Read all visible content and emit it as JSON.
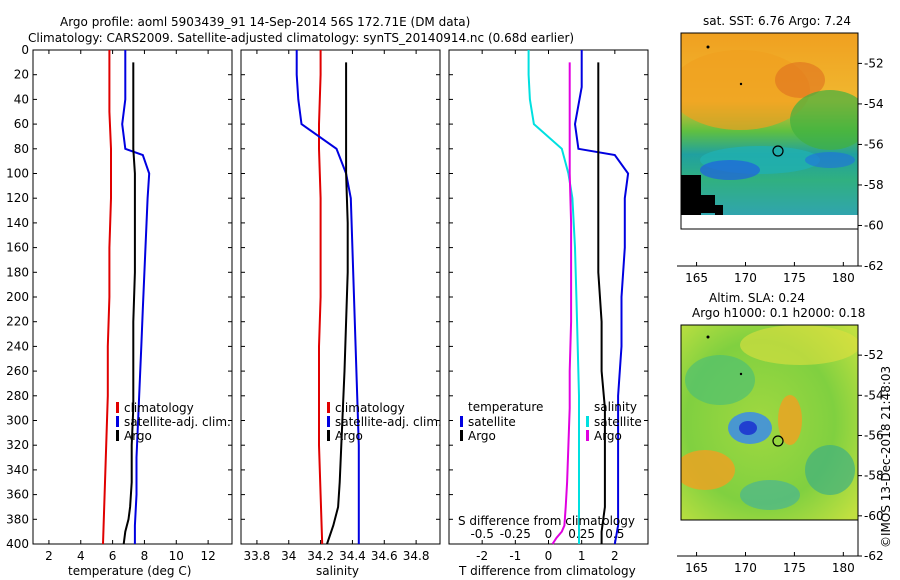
{
  "header": {
    "title_line1": "Argo profile: aoml 5903439_91 14-Sep-2014 56S 172.71E (DM data)",
    "title_line2": "Climatology: CARS2009. Satellite-adjusted climatology: synTS_20140914.nc (0.68d earlier)"
  },
  "colors": {
    "climatology": "#e00000",
    "satellite": "#0000e0",
    "argo": "#000000",
    "cyan": "#00e0e0",
    "magenta": "#e000e0"
  },
  "chart_data": [
    {
      "type": "line",
      "title": "",
      "xlabel": "temperature (deg C)",
      "ylabel": "",
      "xlim": [
        1,
        13.5
      ],
      "ylim": [
        400,
        0
      ],
      "xticks": [
        "2",
        "4",
        "6",
        "8",
        "10",
        "12"
      ],
      "yticks": [
        "0",
        "20",
        "40",
        "60",
        "80",
        "100",
        "120",
        "140",
        "160",
        "180",
        "200",
        "220",
        "240",
        "260",
        "280",
        "300",
        "320",
        "340",
        "360",
        "380",
        "400"
      ],
      "legend": [
        "climatology",
        "satellite-adj. clim.",
        "Argo"
      ],
      "legend_position": "lower-right",
      "series": [
        {
          "name": "climatology",
          "color": "#e00000",
          "x": [
            5.8,
            5.8,
            5.8,
            5.9,
            5.9,
            5.8,
            5.8,
            5.7,
            5.7,
            5.6,
            5.5,
            5.4
          ],
          "y": [
            0,
            20,
            50,
            80,
            120,
            160,
            200,
            240,
            280,
            320,
            360,
            400
          ]
        },
        {
          "name": "satellite-adj. clim.",
          "color": "#0000e0",
          "x": [
            6.8,
            6.8,
            6.6,
            6.8,
            7.9,
            8.3,
            8.2,
            8.1,
            8.0,
            7.9,
            7.8,
            7.7,
            7.6,
            7.5,
            7.5,
            7.4,
            7.4
          ],
          "y": [
            0,
            40,
            60,
            80,
            85,
            100,
            120,
            150,
            180,
            210,
            240,
            270,
            300,
            330,
            360,
            385,
            400
          ]
        },
        {
          "name": "Argo",
          "color": "#000000",
          "x": [
            7.3,
            7.3,
            7.3,
            7.4,
            7.4,
            7.4,
            7.3,
            7.3,
            7.3,
            7.2,
            7.2,
            7.1,
            7.0,
            6.8,
            6.7
          ],
          "y": [
            10,
            60,
            80,
            100,
            140,
            180,
            220,
            260,
            290,
            320,
            350,
            370,
            380,
            390,
            400
          ]
        }
      ]
    },
    {
      "type": "line",
      "title": "",
      "xlabel": "salinity",
      "ylabel": "",
      "xlim": [
        33.7,
        34.95
      ],
      "ylim": [
        400,
        0
      ],
      "xticks": [
        "33.8",
        "34",
        "34.2",
        "34.4",
        "34.6",
        "34.8"
      ],
      "legend": [
        "climatology",
        "satellite-adj. clim.",
        "Argo"
      ],
      "legend_position": "lower-right",
      "series": [
        {
          "name": "climatology",
          "color": "#e00000",
          "x": [
            34.2,
            34.2,
            34.19,
            34.19,
            34.2,
            34.2,
            34.2,
            34.19,
            34.19,
            34.19,
            34.2,
            34.21
          ],
          "y": [
            0,
            20,
            60,
            80,
            120,
            160,
            200,
            240,
            280,
            320,
            360,
            400
          ]
        },
        {
          "name": "satellite-adj. clim.",
          "color": "#0000e0",
          "x": [
            34.05,
            34.05,
            34.06,
            34.08,
            34.3,
            34.36,
            34.39,
            34.4,
            34.41,
            34.42,
            34.43,
            34.44,
            34.44
          ],
          "y": [
            0,
            20,
            40,
            60,
            80,
            100,
            120,
            160,
            200,
            240,
            280,
            320,
            400
          ]
        },
        {
          "name": "Argo",
          "color": "#000000",
          "x": [
            34.36,
            34.36,
            34.36,
            34.37,
            34.37,
            34.36,
            34.35,
            34.34,
            34.33,
            34.32,
            34.31,
            34.28,
            34.24
          ],
          "y": [
            10,
            60,
            100,
            140,
            180,
            220,
            260,
            290,
            320,
            350,
            370,
            385,
            400
          ]
        }
      ]
    },
    {
      "type": "line",
      "title": "",
      "xlabel": "T difference from climatology",
      "x2label": "S difference from climatology",
      "ylabel": "",
      "xlim": [
        -3,
        3
      ],
      "x2lim": [
        -0.75,
        0.75
      ],
      "ylim": [
        400,
        0
      ],
      "xticks": [
        "-2",
        "-1",
        "0",
        "1",
        "2"
      ],
      "x2ticks": [
        "-0.5",
        "-0.25",
        "0",
        "0.25",
        "0.5"
      ],
      "legend_groups": [
        {
          "title": "temperature",
          "entries": [
            "satellite",
            "Argo"
          ]
        },
        {
          "title": "salinity",
          "entries": [
            "satellite",
            "Argo"
          ]
        }
      ],
      "series": [
        {
          "name": "temperature satellite",
          "color": "#0000e0",
          "x": [
            1.0,
            1.0,
            0.8,
            0.9,
            2.0,
            2.4,
            2.3,
            2.3,
            2.2,
            2.2,
            2.1,
            2.1,
            2.1,
            2.1,
            2.0
          ],
          "y": [
            0,
            30,
            60,
            80,
            85,
            100,
            120,
            160,
            200,
            240,
            280,
            320,
            360,
            385,
            400
          ]
        },
        {
          "name": "temperature Argo",
          "color": "#000000",
          "x": [
            1.5,
            1.5,
            1.5,
            1.5,
            1.5,
            1.5,
            1.6,
            1.6,
            1.7,
            1.7,
            1.7,
            1.7,
            1.6,
            1.6
          ],
          "y": [
            10,
            60,
            80,
            100,
            140,
            180,
            220,
            260,
            290,
            320,
            350,
            370,
            390,
            400
          ]
        },
        {
          "name": "salinity satellite",
          "color": "#00e0e0",
          "x": [
            -0.15,
            -0.15,
            -0.14,
            -0.11,
            0.1,
            0.15,
            0.18,
            0.2,
            0.21,
            0.22,
            0.23,
            0.23,
            0.23
          ],
          "y": [
            0,
            20,
            40,
            60,
            80,
            100,
            120,
            160,
            200,
            240,
            280,
            320,
            400
          ]
        },
        {
          "name": "salinity Argo",
          "color": "#e000e0",
          "x": [
            0.16,
            0.16,
            0.16,
            0.17,
            0.17,
            0.17,
            0.16,
            0.16,
            0.15,
            0.14,
            0.13,
            0.12,
            0.1,
            0.06,
            0.03
          ],
          "y": [
            10,
            60,
            100,
            140,
            180,
            220,
            260,
            290,
            320,
            350,
            370,
            385,
            390,
            395,
            400
          ]
        }
      ]
    },
    {
      "type": "heatmap",
      "title": "sat. SST: 6.76 Argo: 7.24",
      "xlabel": "",
      "ylabel": "",
      "xlim": [
        163,
        181.5
      ],
      "ylim": [
        -62,
        -50.5
      ],
      "xticks": [
        "165",
        "170",
        "175",
        "180"
      ],
      "yticks": [
        "-52",
        "-54",
        "-56",
        "-58",
        "-60",
        "-62"
      ],
      "marker": {
        "lon": 172.71,
        "lat": -56
      }
    },
    {
      "type": "heatmap",
      "title": "Altim. SLA: 0.24",
      "subtitle": "Argo h1000: 0.1 h2000: 0.18",
      "xlabel": "",
      "ylabel": "",
      "xlim": [
        163,
        181.5
      ],
      "ylim": [
        -62,
        -50.5
      ],
      "xticks": [
        "165",
        "170",
        "175",
        "180"
      ],
      "yticks": [
        "-52",
        "-54",
        "-56",
        "-58",
        "-60",
        "-62"
      ],
      "marker": {
        "lon": 172.71,
        "lat": -56
      }
    }
  ],
  "footer": {
    "credit": "©IMOS 13-Dec-2018 21:48:03"
  }
}
